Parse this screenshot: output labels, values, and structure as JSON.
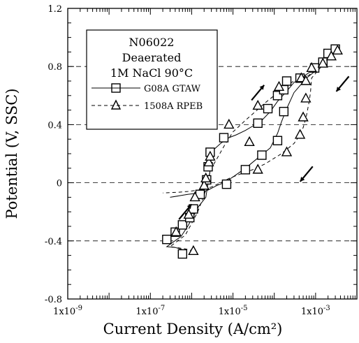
{
  "chart_data": {
    "type": "scatter",
    "title": "",
    "xlabel": "Current Density (A/cm²)",
    "ylabel": "Potential (V, SSC)",
    "xscale": "log",
    "xlim": [
      1e-09,
      0.01
    ],
    "ylim": [
      -0.8,
      1.2
    ],
    "grid": "horizontal dashed lines at y major ticks",
    "legend_placement": "top-left",
    "x_tick_labels": [
      "1x10-9",
      "1x10-7",
      "1x10-5",
      "1x10-3"
    ],
    "y_tick_labels": [
      "-0.8",
      "-0.4",
      "0",
      "0.4",
      "0.8",
      "1.2"
    ],
    "x_tick_values": [
      1e-09,
      1e-07,
      1e-05,
      0.001
    ],
    "y_tick_values": [
      -0.8,
      -0.4,
      0,
      0.4,
      0.8,
      1.2
    ],
    "legend": {
      "lines": [
        "N06022",
        "Deaerated",
        "1M NaCl 90°C"
      ]
    },
    "series": [
      {
        "name": "G08A GTAW",
        "marker": "square",
        "line_style": "solid",
        "color": "#000000",
        "forward": {
          "x": [
            6e-07,
            4e-07,
            2.5e-07,
            5.5e-07,
            8e-07,
            1.1e-06,
            1.5e-06,
            2.2e-06,
            2.5e-06,
            2.8e-06,
            3e-06,
            3.2e-06,
            5e-06,
            8e-06,
            1.2e-05,
            2e-05,
            3e-05,
            5e-05,
            8e-05,
            0.00012,
            0.0002,
            0.0003,
            0.0005,
            0.0008,
            0.0012,
            0.0016,
            0.0022,
            0.0025,
            0.0028,
            0.0032,
            0.0035
          ],
          "y": [
            -0.46,
            -0.445,
            -0.44,
            -0.37,
            -0.3,
            -0.23,
            -0.16,
            -0.1,
            0,
            0.09,
            0.18,
            0.22,
            0.27,
            0.31,
            0.33,
            0.36,
            0.39,
            0.43,
            0.49,
            0.56,
            0.63,
            0.69,
            0.73,
            0.77,
            0.81,
            0.83,
            0.86,
            0.89,
            0.91,
            0.93,
            0.94
          ]
        },
        "reverse": {
          "x": [
            0.0035,
            0.002,
            0.0012,
            0.0009,
            0.0006,
            0.0003,
            0.0002,
            0.00015,
            0.00012,
            8e-05,
            4e-05,
            2e-05,
            1e-05,
            6e-06,
            4e-06,
            2.5e-06,
            1.5e-06,
            8e-07,
            5e-07,
            3e-07
          ],
          "y": [
            0.94,
            0.87,
            0.79,
            0.76,
            0.72,
            0.62,
            0.51,
            0.42,
            0.34,
            0.24,
            0.17,
            0.1,
            0.04,
            0,
            -0.02,
            -0.05,
            -0.07,
            -0.08,
            -0.09,
            -0.1
          ]
        },
        "markers": {
          "x": [
            6e-07,
            2.5e-07,
            4e-07,
            6e-07,
            9e-07,
            1.1e-06,
            1.6e-06,
            2.3e-06,
            2.5e-06,
            2.8e-06,
            6e-06,
            4e-05,
            7e-05,
            0.00012,
            0.00017,
            0.0002,
            0.00042,
            0.00095,
            0.0015,
            0.002,
            0.003,
            0.00017,
            0.00012,
            5e-05,
            2e-05,
            7e-06
          ],
          "y": [
            -0.49,
            -0.39,
            -0.34,
            -0.29,
            -0.24,
            -0.18,
            -0.08,
            0.02,
            0.11,
            0.21,
            0.31,
            0.41,
            0.51,
            0.6,
            0.64,
            0.7,
            0.72,
            0.79,
            0.83,
            0.89,
            0.92,
            0.49,
            0.29,
            0.19,
            0.09,
            -0.01
          ]
        }
      },
      {
        "name": "1508A RPEB",
        "marker": "triangle",
        "line_style": "dashed",
        "color": "#000000",
        "forward": {
          "x": [
            1.1e-06,
            7e-07,
            3e-07,
            7e-07,
            1e-06,
            1.4e-06,
            1.8e-06,
            2.2e-06,
            2.5e-06,
            3e-06,
            4e-06,
            6e-06,
            1e-05,
            2e-05,
            3.5e-05,
            6e-05,
            0.0001,
            0.00015,
            0.0002,
            0.0003,
            0.0005,
            0.0007,
            0.0008,
            0.001,
            0.0014,
            0.002,
            0.003,
            0.0037
          ],
          "y": [
            -0.47,
            -0.455,
            -0.44,
            -0.36,
            -0.28,
            -0.2,
            -0.12,
            -0.05,
            0.03,
            0.1,
            0.16,
            0.25,
            0.35,
            0.43,
            0.49,
            0.55,
            0.6,
            0.64,
            0.67,
            0.7,
            0.73,
            0.74,
            0.76,
            0.79,
            0.82,
            0.86,
            0.9,
            0.92
          ]
        },
        "reverse": {
          "x": [
            0.0037,
            0.002,
            0.0012,
            0.0008,
            0.00075,
            0.0007,
            0.0006,
            0.0005,
            0.0004,
            0.0003,
            0.00015,
            6e-05,
            3e-05,
            1.5e-05,
            8e-06,
            5e-06,
            3e-06,
            1.5e-06,
            8e-07,
            5e-07,
            2e-07
          ],
          "y": [
            0.92,
            0.85,
            0.78,
            0.72,
            0.62,
            0.56,
            0.46,
            0.38,
            0.32,
            0.27,
            0.2,
            0.13,
            0.09,
            0.06,
            0.03,
            0,
            -0.03,
            -0.05,
            -0.06,
            -0.065,
            -0.07
          ]
        },
        "markers": {
          "x": [
            1.1e-06,
            4.2e-07,
            8.5e-07,
            1.2e-06,
            2e-06,
            2.2e-06,
            2.6e-06,
            2.8e-06,
            8e-06,
            4e-05,
            0.00013,
            0.00045,
            0.00058,
            0.0008,
            0.0015,
            0.0024,
            0.0034,
            0.00058,
            0.0005,
            0.00042,
            0.0002,
            4e-05,
            2.5e-05
          ],
          "y": [
            -0.47,
            -0.34,
            -0.22,
            -0.1,
            -0.02,
            0.03,
            0.14,
            0.18,
            0.4,
            0.53,
            0.66,
            0.72,
            0.7,
            0.79,
            0.82,
            0.87,
            0.91,
            0.58,
            0.45,
            0.33,
            0.21,
            0.09,
            0.28
          ]
        }
      }
    ],
    "annotations": [
      {
        "type": "arrow",
        "direction": "up-right",
        "x": 7e-07,
        "y": -0.2
      },
      {
        "type": "arrow",
        "direction": "up-right",
        "x": 4e-05,
        "y": 0.62
      },
      {
        "type": "arrow",
        "direction": "down-left",
        "x": 0.0045,
        "y": 0.68
      },
      {
        "type": "arrow",
        "direction": "down-left",
        "x": 0.0006,
        "y": 0.06
      }
    ]
  }
}
